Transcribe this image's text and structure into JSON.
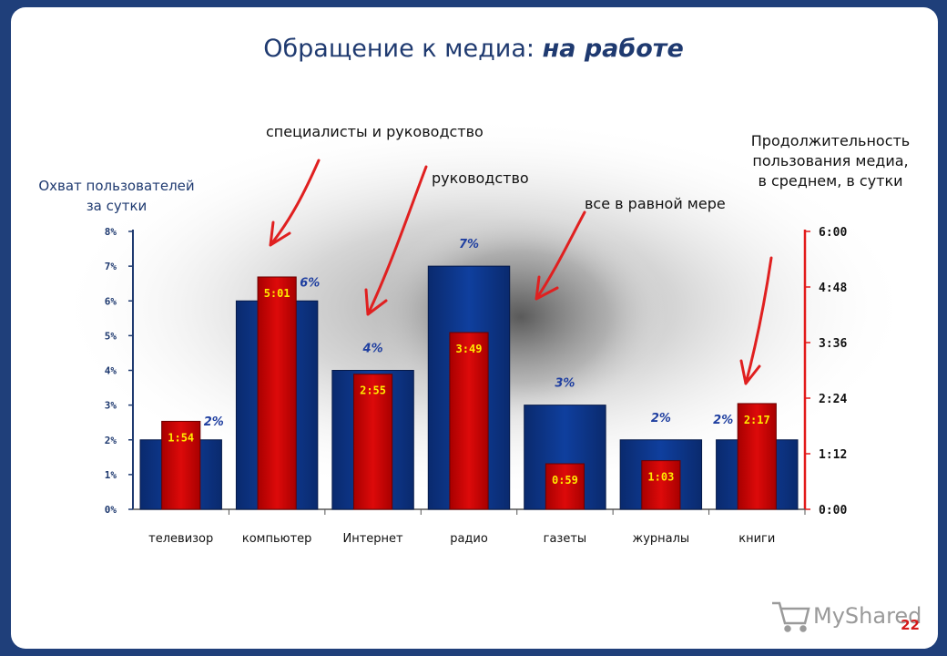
{
  "slide": {
    "title_plain": "Обращение к медиа: ",
    "title_emph": "на работе",
    "page_number": "22",
    "logo_text": "MyShared"
  },
  "annotations": {
    "reach_label": [
      "Охват пользователей",
      "за сутки"
    ],
    "duration_label": [
      "Продолжительность",
      "пользования медиа,",
      "в среднем, в сутки"
    ],
    "specialists": "специалисты и руководство",
    "management": "руководство",
    "everyone": "все в равной мере"
  },
  "colors": {
    "reach_bar": "#0f3f9e",
    "duration_bar": "#dd0a0a",
    "left_axis": "#1f3a70",
    "right_axis": "#e21a1a",
    "arrow": "#e02020"
  },
  "chart_data": {
    "type": "bar",
    "categories": [
      "телевизор",
      "компьютер",
      "Интернет",
      "радио",
      "газеты",
      "журналы",
      "книги"
    ],
    "series": [
      {
        "values": [
          2,
          6,
          4,
          7,
          3,
          2,
          2
        ],
        "value_labels": [
          "2%",
          "6%",
          "4%",
          "7%",
          "3%",
          "2%",
          "2%"
        ]
      },
      {
        "values": [
          114,
          301,
          175,
          229,
          59,
          63,
          137
        ],
        "value_labels": [
          "1:54",
          "5:01",
          "2:55",
          "3:49",
          "0:59",
          "1:03",
          "2:17"
        ]
      }
    ],
    "y_left": {
      "range": [
        0,
        8
      ],
      "ticks": [
        "0%",
        "1%",
        "2%",
        "3%",
        "4%",
        "5%",
        "6%",
        "7%",
        "8%"
      ]
    },
    "y_right": {
      "range": [
        0,
        360
      ],
      "ticks": [
        "0:00",
        "1:12",
        "2:24",
        "3:36",
        "4:48",
        "6:00"
      ]
    },
    "grid": false,
    "legend": "none"
  }
}
